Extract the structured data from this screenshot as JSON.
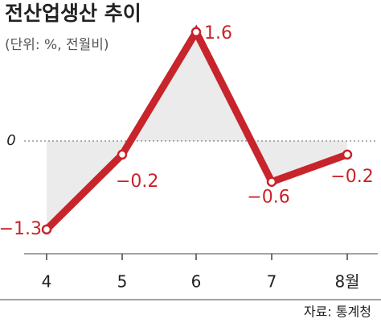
{
  "chart_data": {
    "type": "line",
    "title": "전산업생산 추이",
    "subtitle": "(단위: %, 전월비)",
    "categories": [
      "4",
      "5",
      "6",
      "7",
      "8월"
    ],
    "values": [
      -1.3,
      -0.2,
      1.6,
      -0.6,
      -0.2
    ],
    "value_labels": [
      "−1.3",
      "−0.2",
      "1.6",
      "−0.6",
      "−0.2"
    ],
    "color": "#c8242b",
    "ylim": [
      -2,
      2
    ],
    "yticks": [
      0
    ],
    "source": "자료: 통계청"
  }
}
